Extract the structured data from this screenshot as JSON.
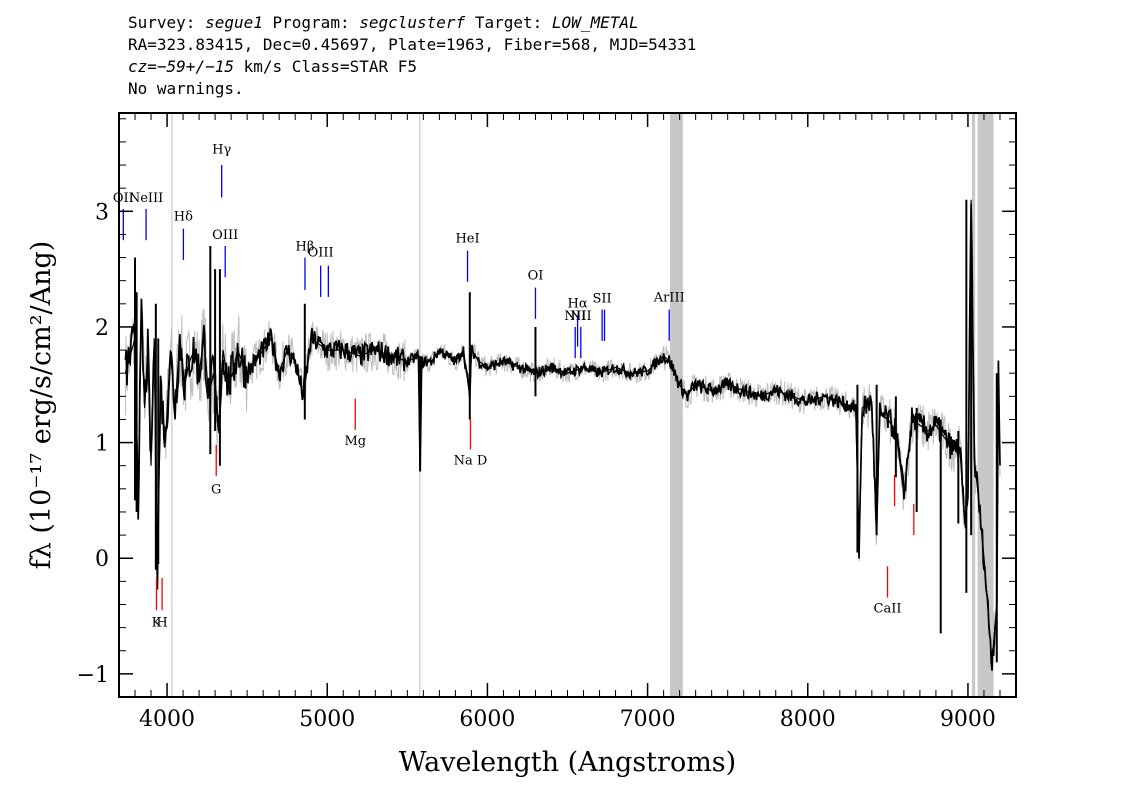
{
  "header": {
    "survey_label": "Survey:",
    "survey": "segue1",
    "program_label": "Program:",
    "program": "segclusterf",
    "target_label": "Target:",
    "target": "LOW_METAL",
    "line2": "RA=323.83415, Dec=0.45697, Plate=1963, Fiber=568, MJD=54331",
    "cz_label": "cz=",
    "cz_value": "−59+/−15",
    "cz_units": "km/s Class=STAR F5",
    "line4": "No warnings."
  },
  "chart_data": {
    "type": "line",
    "xlabel": "Wavelength (Angstroms)",
    "ylabel": "fλ (10⁻¹⁷ erg/s/cm²/Ang)",
    "xlim": [
      3700,
      9300
    ],
    "ylim": [
      -1.2,
      3.85
    ],
    "xticks": [
      4000,
      5000,
      6000,
      7000,
      8000,
      9000
    ],
    "yticks": [
      -1,
      0,
      1,
      2,
      3
    ],
    "xtick_labels": [
      "4000",
      "5000",
      "6000",
      "7000",
      "8000",
      "9000"
    ],
    "ytick_labels": [
      "−1",
      "0",
      "1",
      "2",
      "3"
    ],
    "masked_regions": [
      [
        7140,
        7220
      ],
      [
        9025,
        9045
      ],
      [
        9060,
        9160
      ]
    ],
    "thin_gray_lines": [
      4030,
      5578
    ],
    "series": [
      {
        "color": "#000000",
        "x": [
          3740,
          3770,
          3800,
          3820,
          3840,
          3860,
          3880,
          3900,
          3920,
          3940,
          3960,
          3990,
          4020,
          4050,
          4080,
          4110,
          4140,
          4170,
          4200,
          4230,
          4260,
          4290,
          4320,
          4350,
          4380,
          4410,
          4440,
          4470,
          4500,
          4550,
          4600,
          4650,
          4700,
          4750,
          4800,
          4850,
          4900,
          4950,
          5000,
          5100,
          5200,
          5300,
          5400,
          5500,
          5570,
          5580,
          5590,
          5650,
          5700,
          5750,
          5800,
          5850,
          5890,
          5900,
          5950,
          6000,
          6100,
          6200,
          6300,
          6400,
          6500,
          6600,
          6700,
          6800,
          6900,
          7000,
          7100,
          7140,
          7200,
          7250,
          7270,
          7300,
          7400,
          7500,
          7600,
          7700,
          7800,
          7900,
          8000,
          8100,
          8200,
          8300,
          8320,
          8340,
          8400,
          8430,
          8450,
          8500,
          8550,
          8600,
          8650,
          8700,
          8750,
          8800,
          8850,
          8900,
          8950,
          8980,
          9000,
          9020,
          9040,
          9060,
          9100,
          9150,
          9180,
          9190,
          9200
        ],
        "y": [
          1.6,
          1.75,
          1.9,
          0.5,
          2.1,
          1.3,
          1.8,
          0.8,
          1.9,
          -0.1,
          1.5,
          1.0,
          1.8,
          1.3,
          1.9,
          1.5,
          1.7,
          1.8,
          1.6,
          1.9,
          1.4,
          1.6,
          1.1,
          1.8,
          1.5,
          1.6,
          1.8,
          1.7,
          1.6,
          1.7,
          1.8,
          1.9,
          1.6,
          1.8,
          1.7,
          1.4,
          1.9,
          1.85,
          1.8,
          1.8,
          1.75,
          1.8,
          1.75,
          1.7,
          1.75,
          0.75,
          1.7,
          1.7,
          1.8,
          1.75,
          1.7,
          1.8,
          1.4,
          1.8,
          1.7,
          1.65,
          1.7,
          1.65,
          1.6,
          1.65,
          1.6,
          1.65,
          1.6,
          1.65,
          1.6,
          1.62,
          1.75,
          1.7,
          1.5,
          1.4,
          1.45,
          1.5,
          1.45,
          1.5,
          1.45,
          1.4,
          1.45,
          1.4,
          1.35,
          1.4,
          1.35,
          1.3,
          0.05,
          1.3,
          1.35,
          0.2,
          1.25,
          1.2,
          1.1,
          0.55,
          1.2,
          1.15,
          1.1,
          1.15,
          1.05,
          0.95,
          0.95,
          0.3,
          0.5,
          3.1,
          0.85,
          0.6,
          0.0,
          -0.9,
          -0.4,
          1.6,
          0.8
        ]
      }
    ],
    "spikes": [
      {
        "x": 3800,
        "lo": 0.5,
        "hi": 2.6
      },
      {
        "x": 3810,
        "lo": 0.4,
        "hi": 2.3
      },
      {
        "x": 3930,
        "lo": -0.1,
        "hi": 2.2
      },
      {
        "x": 3945,
        "lo": -0.05,
        "hi": 1.9
      },
      {
        "x": 4270,
        "lo": 0.9,
        "hi": 2.7
      },
      {
        "x": 4300,
        "lo": 1.1,
        "hi": 2.5
      },
      {
        "x": 4330,
        "lo": 0.8,
        "hi": 2.5
      },
      {
        "x": 4860,
        "lo": 1.2,
        "hi": 2.2
      },
      {
        "x": 5580,
        "lo": 0.75,
        "hi": 1.75
      },
      {
        "x": 5890,
        "lo": 1.2,
        "hi": 2.3
      },
      {
        "x": 6300,
        "lo": 1.4,
        "hi": 2.0
      },
      {
        "x": 8310,
        "lo": 0.05,
        "hi": 1.5
      },
      {
        "x": 8430,
        "lo": 0.2,
        "hi": 1.5
      },
      {
        "x": 8550,
        "lo": 0.7,
        "hi": 1.4
      },
      {
        "x": 8680,
        "lo": 0.4,
        "hi": 1.3
      },
      {
        "x": 8830,
        "lo": -0.65,
        "hi": 1.2
      },
      {
        "x": 8940,
        "lo": 0.3,
        "hi": 1.1
      },
      {
        "x": 8990,
        "lo": -0.3,
        "hi": 3.1
      },
      {
        "x": 9020,
        "lo": 0.2,
        "hi": 2.8
      },
      {
        "x": 9180,
        "lo": -0.9,
        "hi": 1.6
      }
    ],
    "emission_lines": [
      {
        "label": "OII",
        "x": 3727,
        "y_top": 3.02,
        "y_bot": 2.75,
        "label_y": 3.08,
        "color": "#0000ff"
      },
      {
        "label": "NeIII",
        "x": 3869,
        "y_top": 3.02,
        "y_bot": 2.75,
        "label_y": 3.08,
        "color": "#0000ff"
      },
      {
        "label": "Hδ",
        "x": 4102,
        "y_top": 2.85,
        "y_bot": 2.58,
        "label_y": 2.92,
        "color": "#0000ff"
      },
      {
        "label": "Hγ",
        "x": 4341,
        "y_top": 3.4,
        "y_bot": 3.12,
        "label_y": 3.5,
        "color": "#0000ff"
      },
      {
        "label": "OIII",
        "x": 4363,
        "y_top": 2.7,
        "y_bot": 2.43,
        "label_y": 2.76,
        "color": "#0000ff"
      },
      {
        "label": "Hβ",
        "x": 4861,
        "y_top": 2.6,
        "y_bot": 2.32,
        "label_y": 2.66,
        "color": "#0000ff"
      },
      {
        "label": "OIII",
        "x": 4959,
        "y_top": 2.53,
        "y_bot": 2.26,
        "label_y": 2.61,
        "color": "#0000ff"
      },
      {
        "label": "",
        "x": 5007,
        "y_top": 2.53,
        "y_bot": 2.26,
        "label_y": 2.61,
        "color": "#0000ff"
      },
      {
        "label": "HeI",
        "x": 5876,
        "y_top": 2.66,
        "y_bot": 2.39,
        "label_y": 2.73,
        "color": "#0000ff"
      },
      {
        "label": "OI",
        "x": 6300,
        "y_top": 2.34,
        "y_bot": 2.07,
        "label_y": 2.41,
        "color": "#0000ff"
      },
      {
        "label": "NII",
        "x": 6548,
        "y_top": 2.0,
        "y_bot": 1.73,
        "label_y": 2.06,
        "color": "#0000ff"
      },
      {
        "label": "Hα",
        "x": 6563,
        "y_top": 2.1,
        "y_bot": 1.83,
        "label_y": 2.17,
        "color": "#0000ff"
      },
      {
        "label": "NII",
        "x": 6583,
        "y_top": 2.0,
        "y_bot": 1.73,
        "label_y": 2.06,
        "color": "#0000ff"
      },
      {
        "label": "SII",
        "x": 6716,
        "y_top": 2.15,
        "y_bot": 1.88,
        "label_y": 2.21,
        "color": "#0000ff"
      },
      {
        "label": "",
        "x": 6731,
        "y_top": 2.15,
        "y_bot": 1.88,
        "label_y": 2.21,
        "color": "#0000ff"
      },
      {
        "label": "ArIII",
        "x": 7135,
        "y_top": 2.15,
        "y_bot": 1.88,
        "label_y": 2.22,
        "color": "#0000ff"
      }
    ],
    "absorption_lines": [
      {
        "label": "K",
        "x": 3934,
        "y_top": -0.17,
        "y_bot": -0.45,
        "label_y": -0.59,
        "color": "#ff0000"
      },
      {
        "label": "H",
        "x": 3969,
        "y_top": -0.17,
        "y_bot": -0.45,
        "label_y": -0.59,
        "color": "#ff0000"
      },
      {
        "label": "G",
        "x": 4307,
        "y_top": 0.98,
        "y_bot": 0.71,
        "label_y": 0.56,
        "color": "#ff0000"
      },
      {
        "label": "Mg",
        "x": 5175,
        "y_top": 1.38,
        "y_bot": 1.11,
        "label_y": 0.98,
        "color": "#ff0000"
      },
      {
        "label": "Na D",
        "x": 5894,
        "y_top": 1.21,
        "y_bot": 0.94,
        "label_y": 0.81,
        "color": "#ff0000"
      },
      {
        "label": "CaII",
        "x": 8498,
        "y_top": -0.07,
        "y_bot": -0.34,
        "label_y": -0.47,
        "color": "#ff0000"
      },
      {
        "label": "",
        "x": 8542,
        "y_top": 0.72,
        "y_bot": 0.45,
        "label_y": 0.3,
        "color": "#ff0000"
      },
      {
        "label": "",
        "x": 8662,
        "y_top": 0.47,
        "y_bot": 0.2,
        "label_y": 0.05,
        "color": "#ff0000"
      }
    ]
  }
}
